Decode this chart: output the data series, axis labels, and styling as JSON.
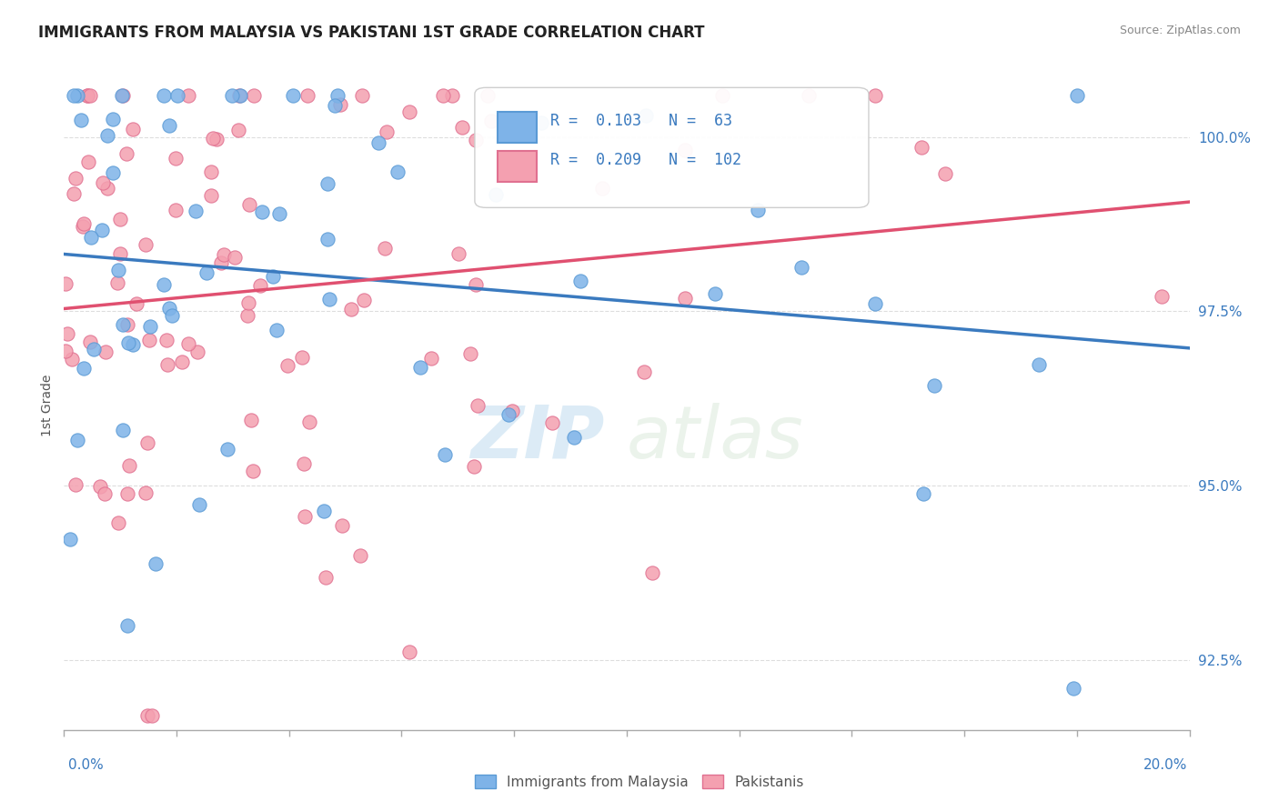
{
  "title": "IMMIGRANTS FROM MALAYSIA VS PAKISTANI 1ST GRADE CORRELATION CHART",
  "source": "Source: ZipAtlas.com",
  "ylabel": "1st Grade",
  "xmin": 0.0,
  "xmax": 20.0,
  "ymin": 91.5,
  "ymax": 100.8,
  "yticks": [
    92.5,
    95.0,
    97.5,
    100.0
  ],
  "ytick_labels": [
    "92.5%",
    "95.0%",
    "97.5%",
    "100.0%"
  ],
  "series1_label": "Immigrants from Malaysia",
  "series1_color": "#7eb3e8",
  "series1_edge": "#5a9ad5",
  "series1_R": 0.103,
  "series1_N": 63,
  "series2_label": "Pakistanis",
  "series2_color": "#f4a0b0",
  "series2_edge": "#e07090",
  "series2_R": 0.209,
  "series2_N": 102,
  "trend1_color": "#3a7abf",
  "trend2_color": "#e05070",
  "watermark_zip": "ZIP",
  "watermark_atlas": "atlas",
  "background_color": "#ffffff",
  "seed1": 42,
  "seed2": 99
}
